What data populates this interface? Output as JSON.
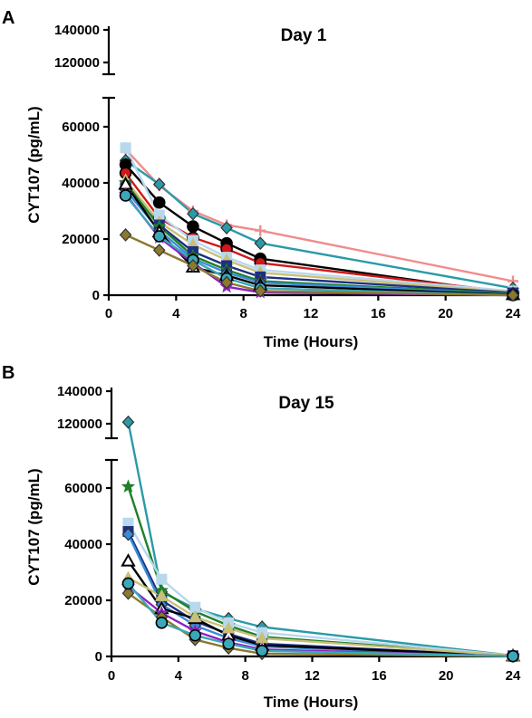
{
  "chart_data": [
    {
      "type": "line",
      "panel": "A",
      "title": "Day 1",
      "xlabel": "Time (Hours)",
      "ylabel": "CYT107 (pg/mL)",
      "xlim": [
        0,
        24
      ],
      "xticks": [
        0,
        4,
        8,
        12,
        16,
        20,
        24
      ],
      "y_lower_range": [
        0,
        70000
      ],
      "y_lower_ticks": [
        0,
        20000,
        40000,
        60000
      ],
      "y_upper_range": [
        110000,
        145000
      ],
      "y_upper_ticks": [
        120000,
        140000
      ],
      "grid": false,
      "series": [
        {
          "color": "#f08c8c",
          "marker": "plus",
          "x": [
            1,
            3,
            5,
            7,
            9,
            24
          ],
          "y": [
            52000,
            39000,
            30000,
            25000,
            23000,
            5000
          ]
        },
        {
          "color": "#2a9aa8",
          "marker": "diamond",
          "x": [
            1,
            3,
            5,
            7,
            9,
            24
          ],
          "y": [
            48000,
            39500,
            29000,
            24000,
            18500,
            2500
          ]
        },
        {
          "color": "#000000",
          "marker": "circle",
          "x": [
            1,
            3,
            5,
            7,
            9,
            24
          ],
          "y": [
            46500,
            33000,
            24500,
            18500,
            13000,
            500
          ]
        },
        {
          "color": "#d01818",
          "marker": "circle",
          "x": [
            1,
            3,
            5,
            7,
            9,
            24
          ],
          "y": [
            43500,
            27500,
            20500,
            16500,
            11500,
            1000
          ]
        },
        {
          "color": "#b8d8ee",
          "marker": "square",
          "x": [
            1,
            3,
            5,
            7,
            9,
            24
          ],
          "y": [
            52500,
            28500,
            19500,
            13500,
            9000,
            1500
          ]
        },
        {
          "color": "#c8c078",
          "marker": "triangle",
          "x": [
            1,
            3,
            5,
            7,
            9,
            24
          ],
          "y": [
            41000,
            26000,
            18000,
            12500,
            8000,
            1000
          ]
        },
        {
          "color": "#1e2f85",
          "marker": "square",
          "x": [
            1,
            3,
            5,
            7,
            9,
            24
          ],
          "y": [
            39000,
            25000,
            15500,
            10500,
            6500,
            800
          ]
        },
        {
          "color": "#20802a",
          "marker": "star",
          "x": [
            1,
            3,
            5,
            7,
            9,
            24
          ],
          "y": [
            40000,
            24500,
            14000,
            9000,
            5000,
            500
          ]
        },
        {
          "color": "#3a8cd8",
          "marker": "diamond",
          "x": [
            1,
            3,
            5,
            7,
            9,
            24
          ],
          "y": [
            37500,
            23000,
            13000,
            8000,
            4500,
            300
          ]
        },
        {
          "color": "#000000",
          "marker": "triangle-open",
          "x": [
            1,
            3,
            5,
            7,
            9,
            24
          ],
          "y": [
            39500,
            22500,
            10000,
            7000,
            3500,
            200
          ]
        },
        {
          "color": "#9020c0",
          "marker": "star",
          "x": [
            1,
            3,
            5,
            7,
            9,
            24
          ],
          "y": [
            36000,
            20500,
            11500,
            3000,
            1000,
            0
          ]
        },
        {
          "color": "#3aa8b8",
          "marker": "circle",
          "x": [
            1,
            3,
            5,
            7,
            9,
            24
          ],
          "y": [
            35500,
            21000,
            12500,
            6000,
            2500,
            0
          ]
        },
        {
          "color": "#8a7a30",
          "marker": "diamond",
          "x": [
            1,
            3,
            5,
            7,
            9,
            24
          ],
          "y": [
            21500,
            16000,
            10500,
            4500,
            1500,
            0
          ]
        }
      ]
    },
    {
      "type": "line",
      "panel": "B",
      "title": "Day 15",
      "xlabel": "Time (Hours)",
      "ylabel": "CYT107 (pg/mL)",
      "xlim": [
        0,
        24
      ],
      "xticks": [
        0,
        4,
        8,
        12,
        16,
        20,
        24
      ],
      "y_lower_range": [
        0,
        70000
      ],
      "y_lower_ticks": [
        0,
        20000,
        40000,
        60000
      ],
      "y_upper_range": [
        110000,
        145000
      ],
      "y_upper_ticks": [
        120000,
        140000
      ],
      "grid": false,
      "series": [
        {
          "color": "#2a9aa8",
          "marker": "diamond",
          "x": [
            1,
            3,
            5,
            7,
            9,
            24
          ],
          "y": [
            121000,
            23000,
            17000,
            13500,
            10500,
            300
          ]
        },
        {
          "color": "#20802a",
          "marker": "star",
          "x": [
            1,
            3,
            5,
            7,
            9,
            24
          ],
          "y": [
            60500,
            23500,
            16000,
            11000,
            7000,
            300
          ]
        },
        {
          "color": "#b8d8ee",
          "marker": "square",
          "x": [
            1,
            3,
            5,
            7,
            9,
            24
          ],
          "y": [
            47500,
            27500,
            17500,
            12000,
            8500,
            300
          ]
        },
        {
          "color": "#1e2f85",
          "marker": "square",
          "x": [
            1,
            3,
            5,
            7,
            9,
            24
          ],
          "y": [
            44500,
            20000,
            12500,
            8000,
            4500,
            200
          ]
        },
        {
          "color": "#3a8cd8",
          "marker": "diamond",
          "x": [
            1,
            3,
            5,
            7,
            9,
            24
          ],
          "y": [
            43500,
            18500,
            11000,
            6500,
            3500,
            200
          ]
        },
        {
          "color": "#000000",
          "marker": "triangle-open",
          "x": [
            1,
            3,
            5,
            7,
            9,
            24
          ],
          "y": [
            34000,
            17000,
            13500,
            7500,
            4000,
            200
          ]
        },
        {
          "color": "#c8c078",
          "marker": "triangle",
          "x": [
            1,
            3,
            5,
            7,
            9,
            24
          ],
          "y": [
            28000,
            21500,
            14000,
            10000,
            6500,
            300
          ]
        },
        {
          "color": "#9020c0",
          "marker": "star",
          "x": [
            1,
            3,
            5,
            7,
            9,
            24
          ],
          "y": [
            25000,
            15500,
            9000,
            5000,
            2500,
            100
          ]
        },
        {
          "color": "#8a7a30",
          "marker": "diamond",
          "x": [
            1,
            3,
            5,
            7,
            9,
            24
          ],
          "y": [
            22500,
            14000,
            6000,
            3000,
            1000,
            100
          ]
        },
        {
          "color": "#3aa8b8",
          "marker": "circle",
          "x": [
            1,
            3,
            5,
            7,
            9,
            24
          ],
          "y": [
            26000,
            12000,
            7500,
            4500,
            2000,
            100
          ]
        }
      ]
    }
  ]
}
